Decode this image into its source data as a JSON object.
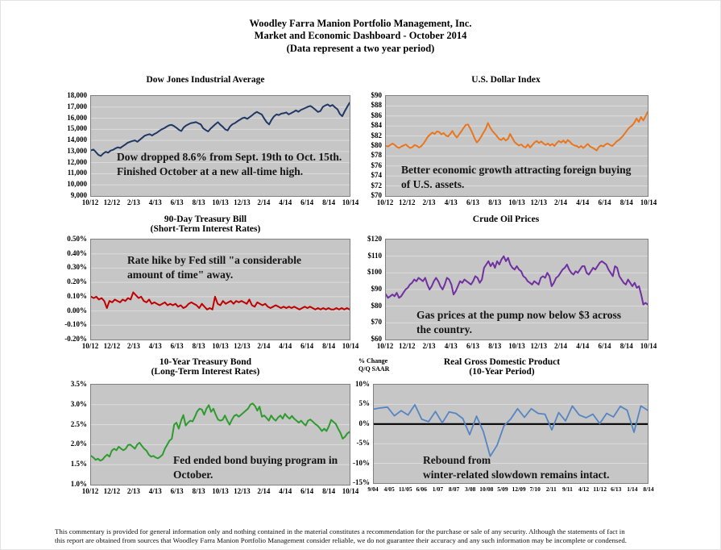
{
  "header": {
    "line1": "Woodley Farra Manion Portfolio Management, Inc.",
    "line2": "Market and Economic Dashboard - October 2014",
    "line3": "(Data represent a two year period)"
  },
  "footer": {
    "line1": "This commentary is provided for general information only and nothing contained in the material constitutes a recommendation for the purchase or sale of any security. Although the statements of fact in",
    "line2": "this report are obtained from sources that Woodley Farra Manion Portfolio Management consider reliable, we do not guarantee their accuracy and any such information may be incomplete or condensed."
  },
  "colors": {
    "plot_background": "#c6c6c6",
    "gridline": "#dcdcdc",
    "plot_border": "#7f7f7f",
    "dow_line": "#1F3864",
    "dollar_line": "#E8761E",
    "tbill_line": "#C00000",
    "crude_line": "#7030A0",
    "bond_line": "#2E9B2E",
    "gdp_line": "#5585C2"
  },
  "chart_data": [
    {
      "id": "dow",
      "type": "line",
      "title": "Dow Jones Industrial Average",
      "color": "#1F3864",
      "ylim": [
        9000,
        18000
      ],
      "y_ticks": [
        "18,000",
        "17,000",
        "16,000",
        "15,000",
        "14,000",
        "13,000",
        "12,000",
        "11,000",
        "10,000",
        "9,000"
      ],
      "x_ticks": [
        "10/12",
        "12/12",
        "2/13",
        "4/13",
        "6/13",
        "8/13",
        "10/13",
        "12/13",
        "2/14",
        "4/14",
        "6/14",
        "8/14",
        "10/14"
      ],
      "annotation": [
        "Dow dropped 8.6% from Sept. 19th to Oct. 15th.",
        "Finished October at a new all-time high."
      ],
      "values": [
        13100,
        13180,
        12950,
        12700,
        12600,
        12820,
        12980,
        12900,
        13080,
        13150,
        13280,
        13380,
        13320,
        13480,
        13620,
        13780,
        13880,
        13950,
        14000,
        13880,
        14060,
        14240,
        14420,
        14500,
        14560,
        14440,
        14580,
        14700,
        14860,
        15000,
        15100,
        15240,
        15360,
        15400,
        15290,
        15140,
        14960,
        14840,
        15180,
        15340,
        15460,
        15560,
        15600,
        15650,
        15540,
        15440,
        15080,
        14940,
        14810,
        15060,
        15260,
        15460,
        15640,
        15410,
        15230,
        14990,
        14900,
        15260,
        15460,
        15560,
        15720,
        15860,
        16000,
        16060,
        15940,
        16090,
        16260,
        16440,
        16560,
        16440,
        16330,
        15960,
        15640,
        15440,
        15860,
        16160,
        16340,
        16290,
        16410,
        16450,
        16520,
        16340,
        16450,
        16560,
        16700,
        16580,
        16740,
        16840,
        16940,
        17040,
        17100,
        16940,
        16760,
        16560,
        16640,
        17010,
        17140,
        17240,
        17080,
        17190,
        16980,
        16800,
        16380,
        16180,
        16620,
        17020,
        17390
      ]
    },
    {
      "id": "dollar",
      "type": "line",
      "title": "U.S. Dollar Index",
      "color": "#E8761E",
      "ylim": [
        70,
        90
      ],
      "y_ticks": [
        "$90",
        "$88",
        "$86",
        "$84",
        "$82",
        "$80",
        "$78",
        "$76",
        "$74",
        "$72",
        "$70"
      ],
      "x_ticks": [
        "10/12",
        "12/12",
        "2/13",
        "4/13",
        "6/13",
        "8/13",
        "10/13",
        "12/13",
        "2/14",
        "4/14",
        "6/14",
        "8/14",
        "10/14"
      ],
      "annotation": [
        "Better economic growth attracting foreign buying",
        "of U.S. assets."
      ],
      "values": [
        80.0,
        79.9,
        80.2,
        80.5,
        80.2,
        79.8,
        79.6,
        79.9,
        80.1,
        80.3,
        79.9,
        79.6,
        79.8,
        80.2,
        80.0,
        79.7,
        80.0,
        80.5,
        81.2,
        81.9,
        82.3,
        82.7,
        82.4,
        82.9,
        82.8,
        82.3,
        82.6,
        82.1,
        81.9,
        82.4,
        83.0,
        82.2,
        81.7,
        82.3,
        82.9,
        83.6,
        84.2,
        84.3,
        83.5,
        82.6,
        81.5,
        80.7,
        81.2,
        81.9,
        82.7,
        83.4,
        84.6,
        83.7,
        83.0,
        82.5,
        82.0,
        81.4,
        81.2,
        81.6,
        81.1,
        81.4,
        82.4,
        81.6,
        80.8,
        80.4,
        80.1,
        80.3,
        79.9,
        79.7,
        80.3,
        79.7,
        80.2,
        80.7,
        81.0,
        80.6,
        80.9,
        80.5,
        80.2,
        80.5,
        80.1,
        80.4,
        80.0,
        80.6,
        81.0,
        80.7,
        81.1,
        80.6,
        81.2,
        80.8,
        80.3,
        80.1,
        80.0,
        79.7,
        80.0,
        79.6,
        80.0,
        80.4,
        79.9,
        79.7,
        79.4,
        79.1,
        79.8,
        80.1,
        79.9,
        80.3,
        80.5,
        80.2,
        80.0,
        80.4,
        80.9,
        81.2,
        81.6,
        82.1,
        82.7,
        83.3,
        83.8,
        84.1,
        84.7,
        85.5,
        84.8,
        85.8,
        85.1,
        85.9,
        86.8
      ]
    },
    {
      "id": "tbill",
      "type": "line",
      "title": "90-Day Treasury Bill",
      "subtitle": "(Short-Term Interest Rates)",
      "color": "#C00000",
      "ylim": [
        -0.2,
        0.5
      ],
      "y_ticks": [
        "0.50%",
        "0.40%",
        "0.30%",
        "0.20%",
        "0.10%",
        "0.00%",
        "-0.10%",
        "-0.20%"
      ],
      "x_ticks": [
        "10/12",
        "12/12",
        "2/13",
        "4/13",
        "6/13",
        "8/13",
        "10/13",
        "12/13",
        "2/14",
        "4/14",
        "6/14",
        "8/14",
        "10/14"
      ],
      "annotation": [
        "Rate hike by Fed still \"a considerable",
        "amount of time\" away."
      ],
      "values": [
        0.1,
        0.09,
        0.1,
        0.08,
        0.09,
        0.07,
        0.02,
        0.07,
        0.06,
        0.08,
        0.07,
        0.06,
        0.08,
        0.07,
        0.09,
        0.08,
        0.13,
        0.11,
        0.09,
        0.1,
        0.07,
        0.06,
        0.08,
        0.05,
        0.06,
        0.05,
        0.04,
        0.05,
        0.06,
        0.04,
        0.05,
        0.04,
        0.05,
        0.03,
        0.04,
        0.02,
        0.03,
        0.05,
        0.06,
        0.05,
        0.04,
        0.02,
        0.05,
        0.03,
        0.01,
        0.02,
        0.01,
        0.1,
        0.05,
        0.04,
        0.07,
        0.05,
        0.06,
        0.07,
        0.05,
        0.07,
        0.06,
        0.07,
        0.06,
        0.05,
        0.08,
        0.04,
        0.03,
        0.06,
        0.05,
        0.04,
        0.05,
        0.03,
        0.02,
        0.03,
        0.04,
        0.03,
        0.02,
        0.03,
        0.02,
        0.03,
        0.02,
        0.03,
        0.02,
        0.01,
        0.02,
        0.03,
        0.02,
        0.03,
        0.02,
        0.01,
        0.02,
        0.01,
        0.02,
        0.01,
        0.02,
        0.01,
        0.01,
        0.02,
        0.01,
        0.02,
        0.01,
        0.02,
        0.01
      ]
    },
    {
      "id": "crude",
      "type": "line",
      "title": "Crude Oil Prices",
      "color": "#7030A0",
      "ylim": [
        60,
        120
      ],
      "y_ticks": [
        "$120",
        "$110",
        "$100",
        "$90",
        "$80",
        "$70",
        "$60"
      ],
      "x_ticks": [
        "10/12",
        "12/12",
        "2/13",
        "4/13",
        "6/13",
        "8/13",
        "10/13",
        "12/13",
        "2/14",
        "4/14",
        "6/14",
        "8/14",
        "10/14"
      ],
      "annotation": [
        "Gas prices at the pump now below $3 across",
        "the country."
      ],
      "values": [
        87,
        85,
        86,
        87,
        86,
        88,
        85,
        86,
        88,
        90,
        91,
        93,
        94,
        96,
        95,
        97,
        96,
        95,
        97,
        93,
        90,
        92,
        95,
        97,
        95,
        92,
        90,
        93,
        97,
        96,
        93,
        87,
        89,
        92,
        95,
        94,
        96,
        95,
        94,
        93,
        95,
        98,
        97,
        94,
        96,
        103,
        105,
        107,
        104,
        106,
        103,
        107,
        105,
        108,
        110,
        107,
        109,
        105,
        103,
        102,
        104,
        102,
        101,
        98,
        97,
        95,
        94,
        93,
        95,
        94,
        93,
        97,
        98,
        97,
        100,
        98,
        92,
        94,
        97,
        98,
        100,
        102,
        103,
        105,
        102,
        100,
        99,
        101,
        100,
        102,
        104,
        104,
        100,
        99,
        101,
        103,
        102,
        104,
        106,
        107,
        106,
        105,
        102,
        100,
        98,
        104,
        103,
        98,
        96,
        94,
        93,
        96,
        94,
        92,
        94,
        91,
        92,
        87,
        81,
        82,
        81
      ]
    },
    {
      "id": "bond",
      "type": "line",
      "title": "10-Year Treasury Bond",
      "subtitle": "(Long-Term Interest Rates)",
      "color": "#2E9B2E",
      "ylim": [
        1.0,
        3.5
      ],
      "y_ticks": [
        "3.5%",
        "3.0%",
        "2.5%",
        "2.0%",
        "1.5%",
        "1.0%"
      ],
      "x_ticks": [
        "10/12",
        "12/12",
        "2/13",
        "4/13",
        "6/13",
        "8/13",
        "10/13",
        "12/13",
        "2/14",
        "4/14",
        "6/14",
        "8/14",
        "10/14"
      ],
      "annotation": [
        "Fed ended bond buying program in",
        "October."
      ],
      "values": [
        1.72,
        1.68,
        1.62,
        1.65,
        1.6,
        1.63,
        1.7,
        1.75,
        1.7,
        1.85,
        1.9,
        1.86,
        1.95,
        1.9,
        1.86,
        1.9,
        1.99,
        2.0,
        1.95,
        1.9,
        2.0,
        2.05,
        1.97,
        1.9,
        1.85,
        1.75,
        1.7,
        1.72,
        1.68,
        1.66,
        1.7,
        1.75,
        1.9,
        2.0,
        2.1,
        2.15,
        2.5,
        2.55,
        2.4,
        2.6,
        2.74,
        2.48,
        2.55,
        2.6,
        2.58,
        2.7,
        2.83,
        2.9,
        2.88,
        2.75,
        2.9,
        2.99,
        2.82,
        2.9,
        2.75,
        2.63,
        2.6,
        2.62,
        2.73,
        2.6,
        2.5,
        2.62,
        2.72,
        2.75,
        2.7,
        2.75,
        2.8,
        2.85,
        2.9,
        3.0,
        3.03,
        2.97,
        2.85,
        2.95,
        2.7,
        2.73,
        2.67,
        2.6,
        2.73,
        2.65,
        2.6,
        2.68,
        2.73,
        2.65,
        2.77,
        2.7,
        2.65,
        2.72,
        2.65,
        2.6,
        2.55,
        2.6,
        2.53,
        2.48,
        2.6,
        2.63,
        2.58,
        2.52,
        2.48,
        2.42,
        2.34,
        2.4,
        2.34,
        2.46,
        2.62,
        2.57,
        2.52,
        2.4,
        2.3,
        2.15,
        2.2,
        2.28,
        2.32
      ]
    },
    {
      "id": "gdp",
      "type": "line",
      "title": "Real Gross Domestic Product",
      "subtitle": "(10-Year Period)",
      "axis_note": [
        "% Change",
        "Q/Q SAAR"
      ],
      "color": "#5585C2",
      "ylim": [
        -15,
        10
      ],
      "zero_line": true,
      "y_ticks": [
        "10%",
        "5%",
        "0%",
        "-5%",
        "-10%",
        "-15%"
      ],
      "x_ticks": [
        "9/04",
        "4/05",
        "11/05",
        "6/06",
        "1/07",
        "8/07",
        "3/08",
        "10/08",
        "5/09",
        "12/09",
        "7/10",
        "2/11",
        "9/11",
        "4/12",
        "11/12",
        "6/13",
        "1/14",
        "8/14"
      ],
      "annotation": [
        "Rebound from",
        "winter-related slowdown remains intact."
      ],
      "values": [
        3.8,
        4.1,
        4.3,
        2.1,
        3.4,
        2.3,
        4.9,
        1.2,
        0.6,
        3.2,
        0.3,
        3.1,
        2.7,
        1.4,
        -2.7,
        2.0,
        -1.9,
        -8.2,
        -5.4,
        -0.5,
        1.3,
        3.9,
        1.7,
        3.9,
        2.7,
        2.5,
        -1.5,
        2.9,
        0.8,
        4.6,
        2.3,
        1.6,
        2.5,
        0.1,
        2.7,
        1.8,
        4.5,
        3.5,
        -2.1,
        4.6,
        3.5
      ]
    }
  ]
}
